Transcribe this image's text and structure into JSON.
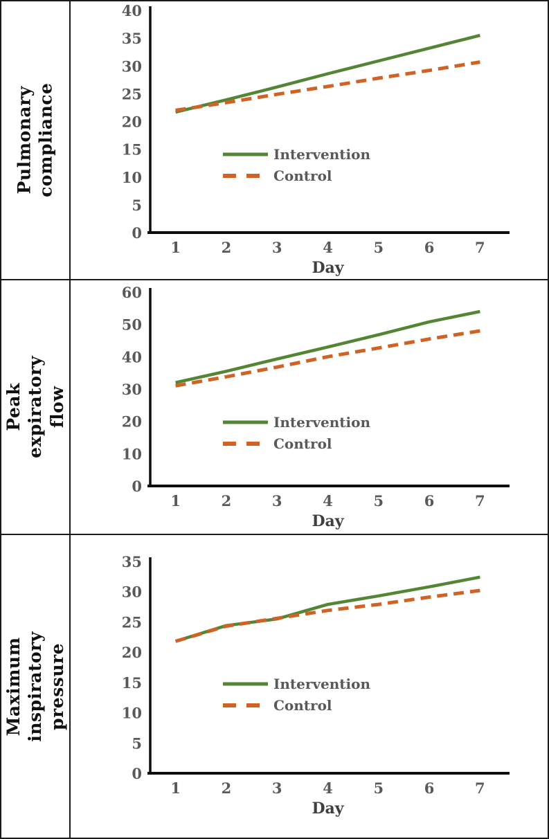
{
  "colors": {
    "intervention": "#548535",
    "control": "#D06226",
    "axis": "#0d0d0d",
    "tick_text": "#595959",
    "xlabel_text": "#3f3f3f",
    "panel_label_text": "#111111",
    "border": "#1a1a1a"
  },
  "legend": {
    "intervention_label": "Intervention",
    "control_label": "Control"
  },
  "chart_data": [
    {
      "type": "line",
      "panel_label": "Pulmonary compliance",
      "xlabel": "Day",
      "categories": [
        1,
        2,
        3,
        4,
        5,
        6,
        7
      ],
      "ylim": [
        0,
        40
      ],
      "ytick_step": 5,
      "grid": false,
      "legend_position": "inside-center-left",
      "series": [
        {
          "name": "Intervention",
          "style": "solid",
          "color_key": "intervention",
          "values": [
            21.7,
            23.9,
            26.2,
            28.6,
            30.9,
            33.2,
            35.5
          ]
        },
        {
          "name": "Control",
          "style": "dashed",
          "color_key": "control",
          "values": [
            22.0,
            23.4,
            24.9,
            26.3,
            27.8,
            29.2,
            30.7
          ]
        }
      ]
    },
    {
      "type": "line",
      "panel_label": "Peak expiratory flow",
      "xlabel": "Day",
      "categories": [
        1,
        2,
        3,
        4,
        5,
        6,
        7
      ],
      "ylim": [
        0,
        60
      ],
      "ytick_step": 10,
      "grid": false,
      "legend_position": "inside-center-left",
      "series": [
        {
          "name": "Intervention",
          "style": "solid",
          "color_key": "intervention",
          "values": [
            32.0,
            35.5,
            39.3,
            43.0,
            46.8,
            50.8,
            54.0
          ]
        },
        {
          "name": "Control",
          "style": "dashed",
          "color_key": "control",
          "values": [
            31.0,
            33.8,
            36.8,
            40.0,
            42.7,
            45.5,
            48.0
          ]
        }
      ]
    },
    {
      "type": "line",
      "panel_label": "Maximum inspiratory\npressure",
      "xlabel": "Day",
      "categories": [
        1,
        2,
        3,
        4,
        5,
        6,
        7
      ],
      "ylim": [
        0,
        35
      ],
      "ytick_step": 5,
      "grid": false,
      "legend_position": "inside-center-left",
      "series": [
        {
          "name": "Intervention",
          "style": "solid",
          "color_key": "intervention",
          "values": [
            21.8,
            24.4,
            25.5,
            27.9,
            29.3,
            30.8,
            32.4
          ]
        },
        {
          "name": "Control",
          "style": "dashed",
          "color_key": "control",
          "values": [
            21.8,
            24.3,
            25.6,
            26.9,
            27.9,
            29.1,
            30.2
          ]
        }
      ]
    }
  ]
}
